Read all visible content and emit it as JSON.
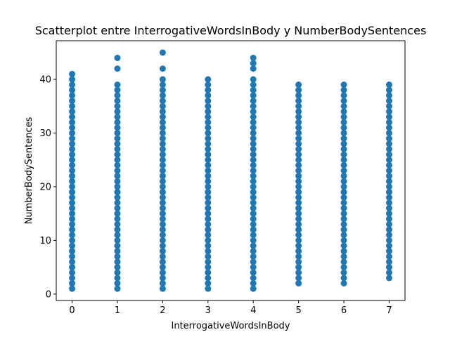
{
  "chart_data": {
    "type": "scatter",
    "title": "Scatterplot entre InterrogativeWordsInBody y NumberBodySentences",
    "xlabel": "InterrogativeWordsInBody",
    "ylabel": "NumberBodySentences",
    "xlim": [
      -0.35,
      7.35
    ],
    "ylim": [
      -1.2,
      47.2
    ],
    "xticks": [
      0,
      1,
      2,
      3,
      4,
      5,
      6,
      7
    ],
    "yticks": [
      0,
      10,
      20,
      30,
      40
    ],
    "grid": false,
    "marker_color": "#1f77b4",
    "columns": [
      {
        "x": 0,
        "y_min": 1,
        "y_max": 39,
        "extra_y": [
          40,
          41
        ]
      },
      {
        "x": 1,
        "y_min": 1,
        "y_max": 39,
        "extra_y": [
          42,
          44
        ]
      },
      {
        "x": 2,
        "y_min": 1,
        "y_max": 40,
        "extra_y": [
          42,
          45
        ]
      },
      {
        "x": 3,
        "y_min": 1,
        "y_max": 40,
        "extra_y": []
      },
      {
        "x": 4,
        "y_min": 1,
        "y_max": 40,
        "extra_y": [
          42,
          43,
          44
        ]
      },
      {
        "x": 5,
        "y_min": 2,
        "y_max": 39,
        "extra_y": []
      },
      {
        "x": 6,
        "y_min": 2,
        "y_max": 39,
        "extra_y": []
      },
      {
        "x": 7,
        "y_min": 3,
        "y_max": 39,
        "extra_y": []
      }
    ]
  }
}
